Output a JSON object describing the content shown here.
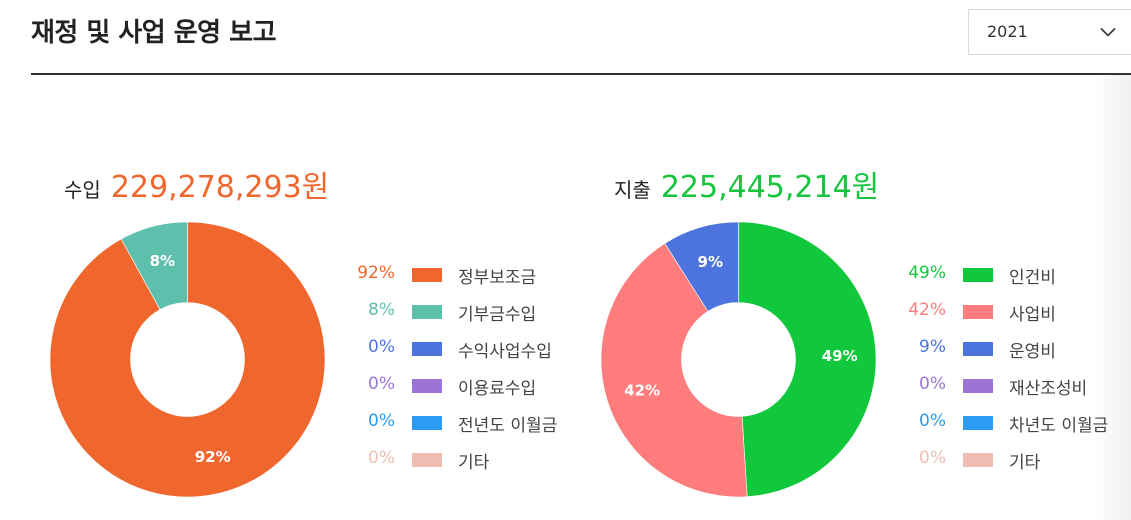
{
  "page": {
    "title": "재정 및 사업 운영 보고"
  },
  "year_select": {
    "value": "2021"
  },
  "chart_data": [
    {
      "type": "pie",
      "donut": true,
      "total_label": "수입",
      "total_amount": "229,278,293원",
      "accent": "#f0672e",
      "series": [
        {
          "name": "정부보조금",
          "value": 92,
          "pct_label": "92%",
          "slice_label": "92%",
          "color": "#f0672e"
        },
        {
          "name": "기부금수입",
          "value": 8,
          "pct_label": "8%",
          "slice_label": "8%",
          "color": "#5ebfad"
        },
        {
          "name": "수익사업수입",
          "value": 0,
          "pct_label": "0%",
          "slice_label": "",
          "color": "#4d74de"
        },
        {
          "name": "이용료수입",
          "value": 0,
          "pct_label": "0%",
          "slice_label": "",
          "color": "#9c74d6"
        },
        {
          "name": "전년도 이월금",
          "value": 0,
          "pct_label": "0%",
          "slice_label": "",
          "color": "#2b9cf2"
        },
        {
          "name": "기타",
          "value": 0,
          "pct_label": "0%",
          "slice_label": "",
          "color": "#eebdb1"
        }
      ]
    },
    {
      "type": "pie",
      "donut": true,
      "total_label": "지출",
      "total_amount": "225,445,214원",
      "accent": "#16c43d",
      "series": [
        {
          "name": "인건비",
          "value": 49,
          "pct_label": "49%",
          "slice_label": "49%",
          "color": "#11c73b"
        },
        {
          "name": "사업비",
          "value": 42,
          "pct_label": "42%",
          "slice_label": "42%",
          "color": "#ff7c7c"
        },
        {
          "name": "운영비",
          "value": 9,
          "pct_label": "9%",
          "slice_label": "9%",
          "color": "#4d74de"
        },
        {
          "name": "재산조성비",
          "value": 0,
          "pct_label": "0%",
          "slice_label": "",
          "color": "#9c74d6"
        },
        {
          "name": "차년도 이월금",
          "value": 0,
          "pct_label": "0%",
          "slice_label": "",
          "color": "#2b9cf2"
        },
        {
          "name": "기타",
          "value": 0,
          "pct_label": "0%",
          "slice_label": "",
          "color": "#eebdb1"
        }
      ]
    }
  ]
}
